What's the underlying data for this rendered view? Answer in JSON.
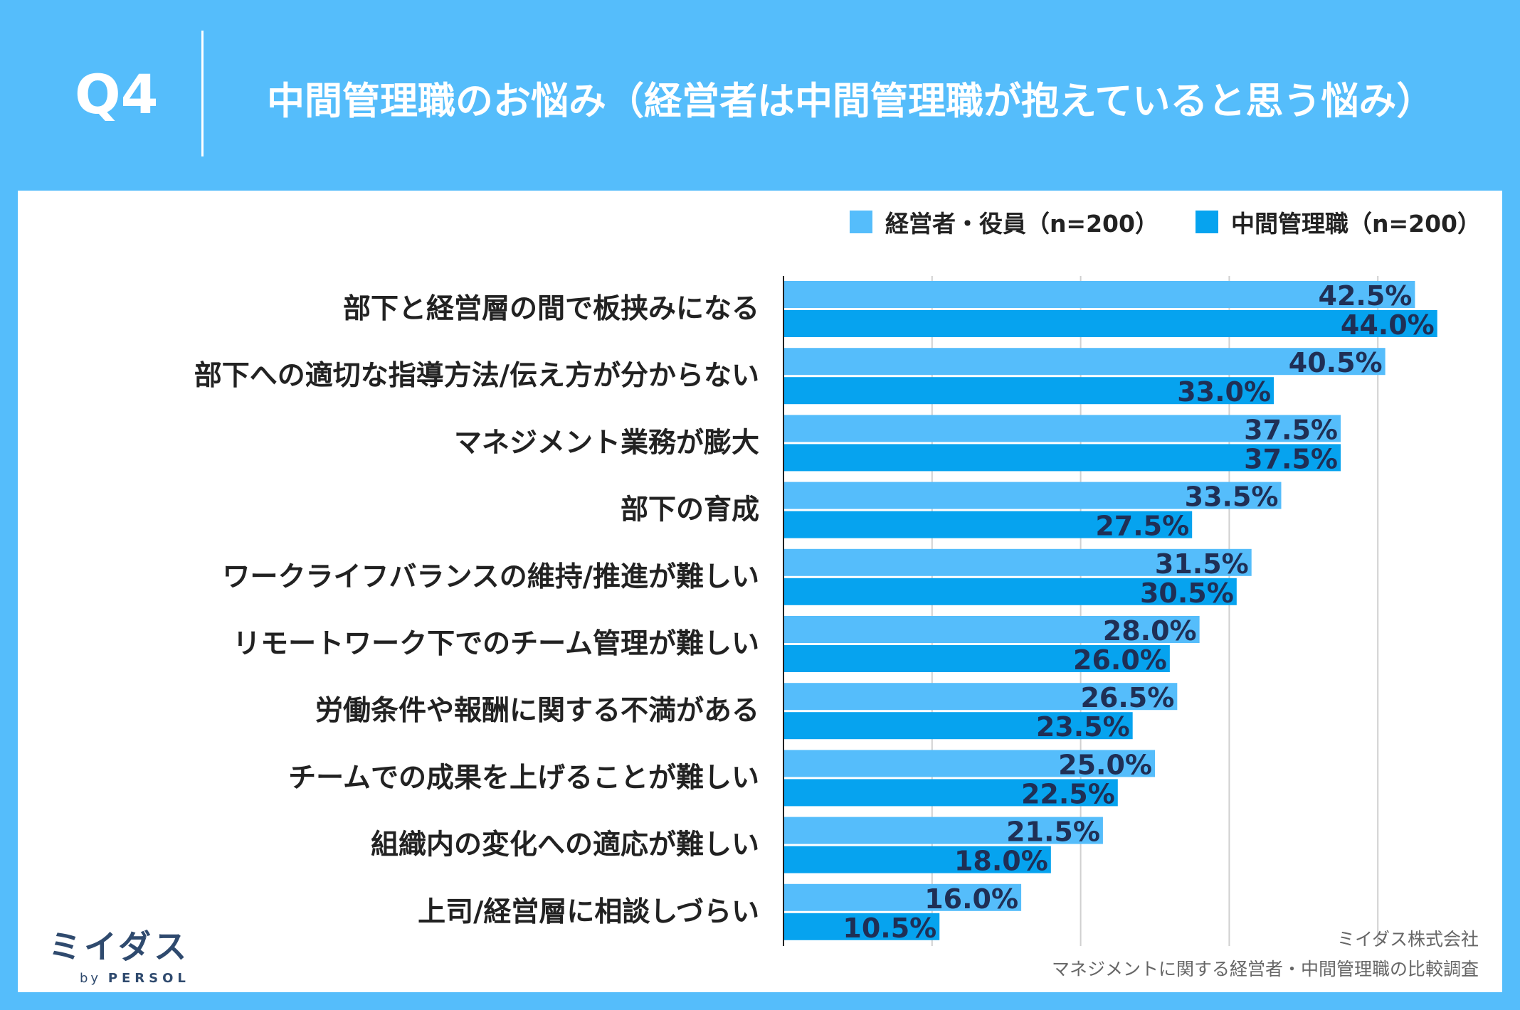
{
  "header": {
    "question": "Q4",
    "title": "中間管理職のお悩み（経営者は中間管理職が抱えていると思う悩み）"
  },
  "legend": {
    "series1": "経営者・役員（n=200）",
    "series2": "中間管理職（n=200）"
  },
  "colors": {
    "background": "#55bdfb",
    "series1": "#55bdfb",
    "series2": "#06a3ef",
    "label": "#1f2f55"
  },
  "chart_data": {
    "type": "bar",
    "orientation": "horizontal",
    "categories": [
      "部下と経営層の間で板挟みになる",
      "部下への適切な指導方法/伝え方が分からない",
      "マネジメント業務が膨大",
      "部下の育成",
      "ワークライフバランスの維持/推進が難しい",
      "リモートワーク下でのチーム管理が難しい",
      "労働条件や報酬に関する不満がある",
      "チームでの成果を上げることが難しい",
      "組織内の変化への適応が難しい",
      "上司/経営層に相談しづらい"
    ],
    "series": [
      {
        "name": "経営者・役員（n=200）",
        "values": [
          42.5,
          40.5,
          37.5,
          33.5,
          31.5,
          28.0,
          26.5,
          25.0,
          21.5,
          16.0
        ],
        "labels": [
          "42.5%",
          "40.5%",
          "37.5%",
          "33.5%",
          "31.5%",
          "28.0%",
          "26.5%",
          "25.0%",
          "21.5%",
          "16.0%"
        ]
      },
      {
        "name": "中間管理職（n=200）",
        "values": [
          44.0,
          33.0,
          37.5,
          27.5,
          30.5,
          26.0,
          23.5,
          22.5,
          18.0,
          10.5
        ],
        "labels": [
          "44.0%",
          "33.0%",
          "37.5%",
          "27.5%",
          "30.5%",
          "26.0%",
          "23.5%",
          "22.5%",
          "18.0%",
          "10.5%"
        ]
      }
    ],
    "xlim": [
      0,
      50
    ],
    "grid": true
  },
  "logo": {
    "name": "ミイダス",
    "by": "by",
    "brand": "PERSOL"
  },
  "source": {
    "company": "ミイダス株式会社",
    "survey": "マネジメントに関する経営者・中間管理職の比較調査"
  }
}
